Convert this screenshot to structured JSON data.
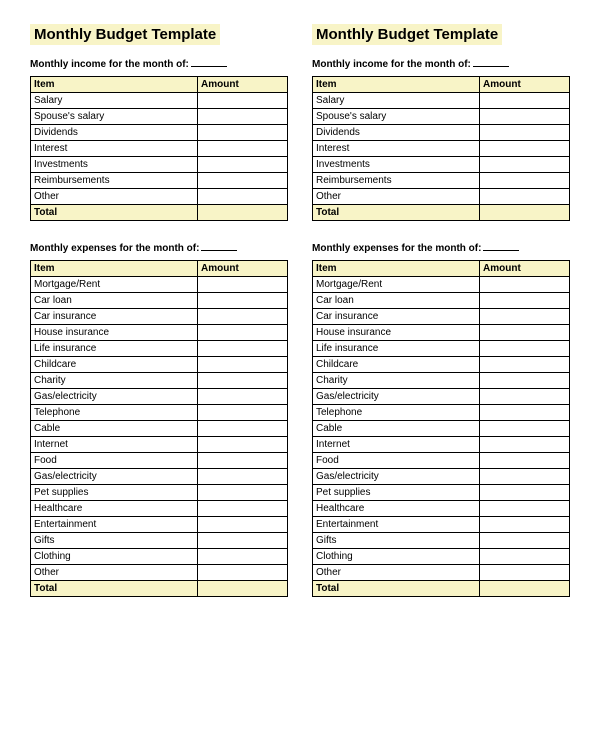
{
  "title": "Monthly Budget Template",
  "income_label": "Monthly income for the month of:",
  "expenses_label": "Monthly expenses for the month of:",
  "headers": {
    "item": "Item",
    "amount": "Amount"
  },
  "total_label": "Total",
  "income_items": [
    "Salary",
    "Spouse's salary",
    "Dividends",
    "Interest",
    "Investments",
    "Reimbursements",
    "Other"
  ],
  "expense_items": [
    "Mortgage/Rent",
    "Car loan",
    "Car insurance",
    "House insurance",
    "Life insurance",
    "Childcare",
    "Charity",
    "Gas/electricity",
    "Telephone",
    "Cable",
    "Internet",
    "Food",
    "Gas/electricity",
    "Pet supplies",
    "Healthcare",
    "Entertainment",
    "Gifts",
    "Clothing",
    "Other"
  ],
  "colors": {
    "highlight": "#f8f4c7",
    "border": "#000000",
    "background": "#ffffff"
  }
}
